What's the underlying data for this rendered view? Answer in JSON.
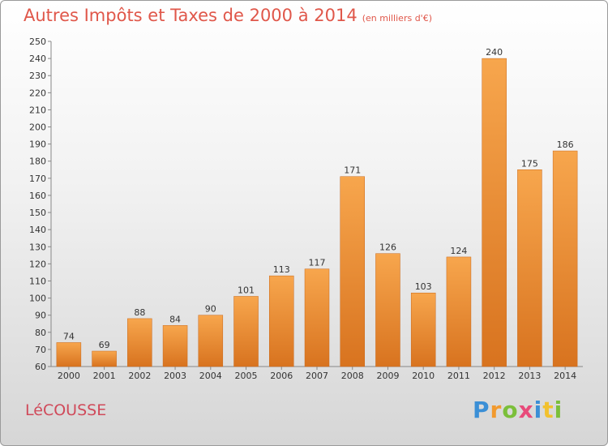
{
  "title": "Autres Impôts et Taxes de 2000 à 2014",
  "subtitle": "(en milliers d'€)",
  "commune": "LéCOUSSE",
  "logo": {
    "letters": [
      "P",
      "r",
      "o",
      "x",
      "i",
      "t",
      "i"
    ],
    "colors": [
      "#3b8fd6",
      "#f29a2e",
      "#7bbf3a",
      "#e84a7a",
      "#3b8fd6",
      "#f2c12e",
      "#7bbf3a"
    ]
  },
  "colors": {
    "bar_light": "#f7a64d",
    "bar_dark": "#d8731f",
    "title": "#e0574a"
  },
  "chart_data": {
    "type": "bar",
    "categories": [
      "2000",
      "2001",
      "2002",
      "2003",
      "2004",
      "2005",
      "2006",
      "2007",
      "2008",
      "2009",
      "2010",
      "2011",
      "2012",
      "2013",
      "2014"
    ],
    "values": [
      74,
      69,
      88,
      84,
      90,
      101,
      113,
      117,
      171,
      126,
      103,
      124,
      240,
      175,
      186
    ],
    "title": "Autres Impôts et Taxes de 2000 à 2014",
    "subtitle": "(en milliers d'€)",
    "ylim": [
      60,
      250
    ],
    "yticks": [
      60,
      70,
      80,
      90,
      100,
      110,
      120,
      130,
      140,
      150,
      160,
      170,
      180,
      190,
      200,
      210,
      220,
      230,
      240,
      250
    ],
    "grid": false,
    "legend": "none"
  }
}
